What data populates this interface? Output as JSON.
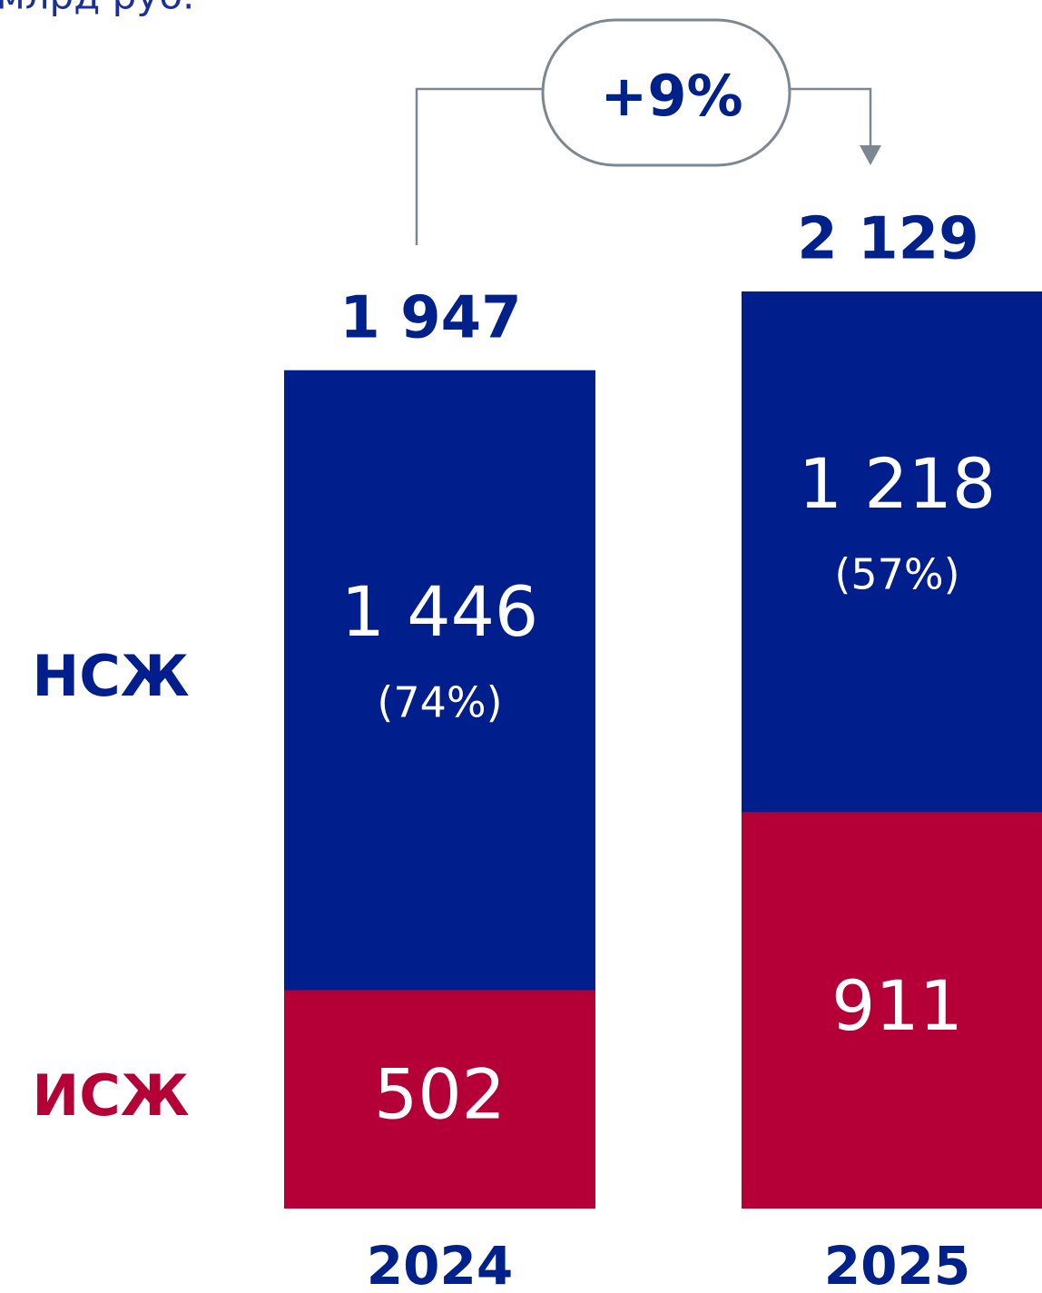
{
  "chart_data": {
    "type": "stacked_bar",
    "title": "млрд руб.",
    "categories": [
      "2024",
      "2025"
    ],
    "series": [
      {
        "name": "ИСЖ",
        "color": "#b40037",
        "values": [
          502,
          911
        ]
      },
      {
        "name": "НСЖ",
        "color": "#001e8c",
        "values": [
          1446,
          1218
        ],
        "value_labels": [
          "1 446",
          "1 218"
        ],
        "shares": [
          74,
          57
        ],
        "share_labels": [
          "(74%)",
          "(57%)"
        ]
      }
    ],
    "totals": [
      1947,
      2129
    ],
    "total_labels": [
      "1 947",
      "2 129"
    ],
    "annotation": "+9%"
  }
}
